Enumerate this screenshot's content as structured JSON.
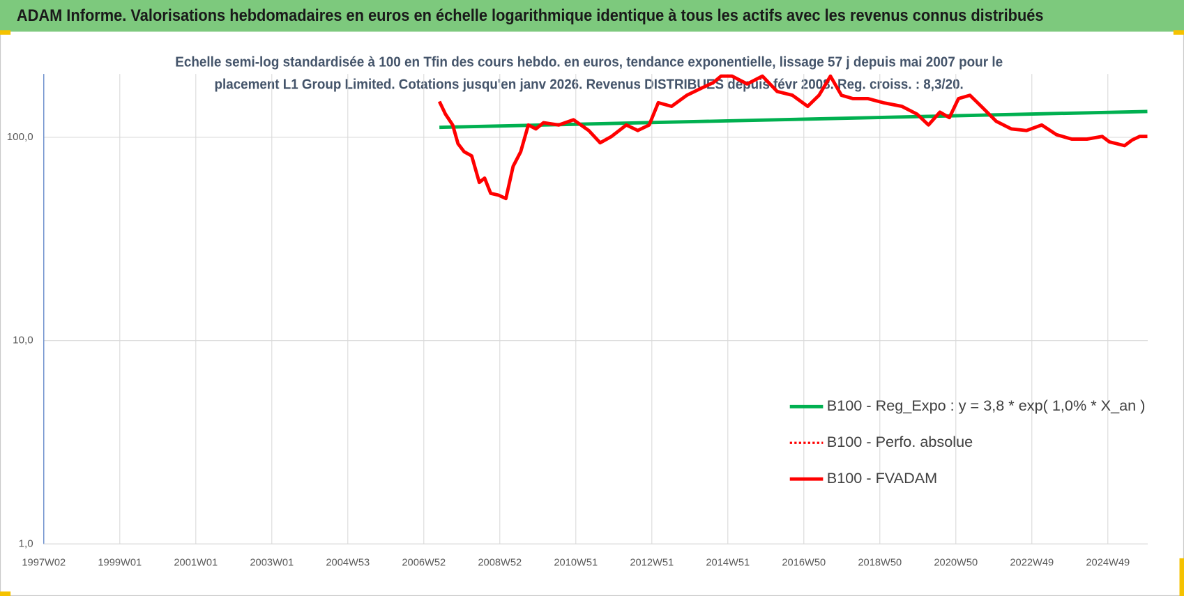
{
  "chart_data": {
    "type": "line",
    "title": "ADAM Informe. Valorisations hebdomadaires en euros en échelle logarithmique identique à tous les actifs avec les revenus connus distribués",
    "subtitle": [
      "Echelle semi-log standardisée à 100 en Tfin des cours hebdo. en euros, tendance exponentielle, lissage 57 j depuis mai 2007 pour le",
      "placement L1 Group Limited. Cotations jusqu'en janv 2026. Revenus DISTRIBUES depuis févr 2008. Reg. croiss. : 8,3/20."
    ],
    "log_y": true,
    "grid": true,
    "legend": "lower right",
    "xlim": [
      1997,
      2026.05
    ],
    "xticks": [
      {
        "value": 1997,
        "label": "1997W02"
      },
      {
        "value": 1999,
        "label": "1999W01"
      },
      {
        "value": 2001,
        "label": "2001W01"
      },
      {
        "value": 2003,
        "label": "2003W01"
      },
      {
        "value": 2005,
        "label": "2004W53"
      },
      {
        "value": 2007,
        "label": "2006W52"
      },
      {
        "value": 2009,
        "label": "2008W52"
      },
      {
        "value": 2011,
        "label": "2010W51"
      },
      {
        "value": 2013,
        "label": "2012W51"
      },
      {
        "value": 2015,
        "label": "2014W51"
      },
      {
        "value": 2017,
        "label": "2016W50"
      },
      {
        "value": 2019,
        "label": "2018W50"
      },
      {
        "value": 2021,
        "label": "2020W50"
      },
      {
        "value": 2023,
        "label": "2022W49"
      },
      {
        "value": 2025,
        "label": "2024W49"
      }
    ],
    "ylim": [
      1,
      205
    ],
    "yticks": [
      {
        "value": 1,
        "label": "1,0"
      },
      {
        "value": 10,
        "label": "10,0"
      },
      {
        "value": 100,
        "label": "100,0"
      }
    ],
    "series": [
      {
        "name": "B100 - Reg_Expo : y = 3,8 * exp( 1,0% *  X_an )",
        "color": "#00b050",
        "style": "solid",
        "x": [
          2007.41,
          2026.04
        ],
        "values": [
          112,
          134
        ]
      },
      {
        "name": "B100 - Perfo. absolue",
        "color": "#ff0000",
        "style": "dotted",
        "x": [
          2007.41,
          2007.57,
          2007.76,
          2007.9,
          2008.06,
          2008.26,
          2008.46,
          2008.6,
          2008.76,
          2008.96,
          2009.16,
          2009.35,
          2009.55,
          2009.75,
          2009.95,
          2010.15,
          2010.55,
          2010.94,
          2011.34,
          2011.64,
          2011.94,
          2012.33,
          2012.63,
          2012.93,
          2013.17,
          2013.52,
          2013.92,
          2014.32,
          2014.62,
          2014.82,
          2015.11,
          2015.51,
          2015.91,
          2016.3,
          2016.7,
          2017.1,
          2017.4,
          2017.7,
          2017.99,
          2018.29,
          2018.69,
          2019.09,
          2019.58,
          2019.98,
          2020.28,
          2020.58,
          2020.83,
          2021.07,
          2021.37,
          2021.67,
          2022.06,
          2022.46,
          2022.86,
          2023.26,
          2023.65,
          2024.05,
          2024.45,
          2024.85,
          2025.04,
          2025.44,
          2025.64,
          2025.84,
          2026.04
        ],
        "values": [
          150,
          130,
          115,
          93,
          85,
          81,
          60,
          63,
          53,
          52,
          50,
          72,
          85,
          115,
          110,
          118,
          115,
          122,
          108,
          94,
          101,
          115,
          108,
          115,
          148,
          142,
          161,
          175,
          186,
          200,
          200,
          183,
          200,
          168,
          161,
          142,
          161,
          200,
          161,
          155,
          155,
          148,
          142,
          130,
          115,
          133,
          125,
          155,
          161,
          142,
          120,
          110,
          108,
          115,
          103,
          98,
          98,
          101,
          95,
          91,
          97,
          101,
          101
        ]
      },
      {
        "name": "B100 - FVADAM",
        "color": "#ff0000",
        "style": "solid",
        "x": [
          2007.41,
          2007.57,
          2007.76,
          2007.9,
          2008.06,
          2008.26,
          2008.46,
          2008.6,
          2008.76,
          2008.96,
          2009.16,
          2009.35,
          2009.55,
          2009.75,
          2009.95,
          2010.15,
          2010.55,
          2010.94,
          2011.34,
          2011.64,
          2011.94,
          2012.33,
          2012.63,
          2012.93,
          2013.17,
          2013.52,
          2013.92,
          2014.32,
          2014.62,
          2014.82,
          2015.11,
          2015.51,
          2015.91,
          2016.3,
          2016.7,
          2017.1,
          2017.4,
          2017.7,
          2017.99,
          2018.29,
          2018.69,
          2019.09,
          2019.58,
          2019.98,
          2020.28,
          2020.58,
          2020.83,
          2021.07,
          2021.37,
          2021.67,
          2022.06,
          2022.46,
          2022.86,
          2023.26,
          2023.65,
          2024.05,
          2024.45,
          2024.85,
          2025.04,
          2025.44,
          2025.64,
          2025.84,
          2026.04
        ],
        "values": [
          150,
          130,
          115,
          93,
          85,
          81,
          60,
          63,
          53,
          52,
          50,
          72,
          85,
          115,
          110,
          118,
          115,
          122,
          108,
          94,
          101,
          115,
          108,
          115,
          148,
          142,
          161,
          175,
          186,
          200,
          200,
          183,
          200,
          168,
          161,
          142,
          161,
          200,
          161,
          155,
          155,
          148,
          142,
          130,
          115,
          133,
          125,
          155,
          161,
          142,
          120,
          110,
          108,
          115,
          103,
          98,
          98,
          101,
          95,
          91,
          97,
          101,
          101
        ]
      }
    ]
  }
}
